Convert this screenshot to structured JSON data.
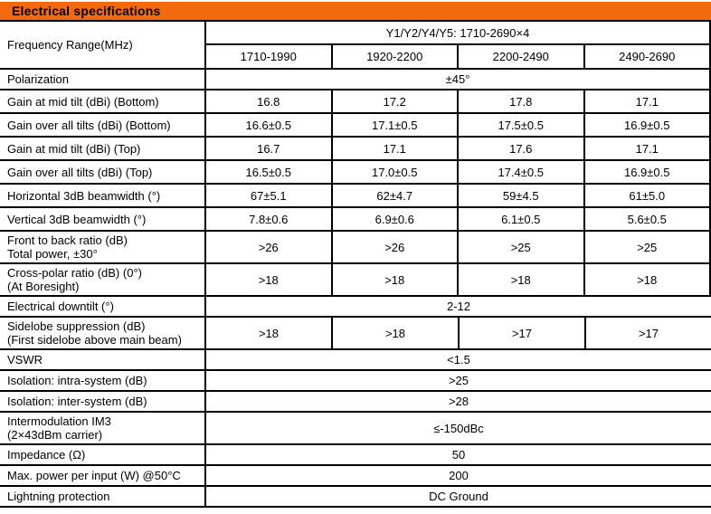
{
  "header": {
    "title": "Electrical specifications",
    "bg_color": "#F3690D",
    "text_color": "#000000"
  },
  "table": {
    "frequency": {
      "label": "Frequency Range(MHz)",
      "group_header": "Y1/Y2/Y4/Y5: 1710-2690×4",
      "columns": [
        "1710-1990",
        "1920-2200",
        "2200-2490",
        "2490-2690"
      ]
    },
    "rows": [
      {
        "label": "Polarization",
        "value": "±45°"
      },
      {
        "label": "Gain at mid tilt (dBi) (Bottom)",
        "values": [
          "16.8",
          "17.2",
          "17.8",
          "17.1"
        ]
      },
      {
        "label": "Gain over all tilts (dBi) (Bottom)",
        "values": [
          "16.6±0.5",
          "17.1±0.5",
          "17.5±0.5",
          "16.9±0.5"
        ]
      },
      {
        "label": "Gain at mid tilt (dBi) (Top)",
        "values": [
          "16.7",
          "17.1",
          "17.6",
          "17.1"
        ]
      },
      {
        "label": "Gain over all tilts (dBi) (Top)",
        "values": [
          "16.5±0.5",
          "17.0±0.5",
          "17.4±0.5",
          "16.9±0.5"
        ]
      },
      {
        "label": "Horizontal 3dB beamwidth (°)",
        "values": [
          "67±5.1",
          "62±4.7",
          "59±4.5",
          "61±5.0"
        ]
      },
      {
        "label": "Vertical 3dB beamwidth (°)",
        "values": [
          "7.8±0.6",
          "6.9±0.6",
          "6.1±0.5",
          "5.6±0.5"
        ]
      },
      {
        "label": "Front to back ratio (dB)\nTotal power, ±30°",
        "values": [
          ">26",
          ">26",
          ">25",
          ">25"
        ]
      },
      {
        "label": "Cross-polar ratio (dB) (0°)\n(At Boresight)",
        "values": [
          ">18",
          ">18",
          ">18",
          ">18"
        ]
      },
      {
        "label": "Electrical downtilt (°)",
        "value": "2-12"
      },
      {
        "label": "Sidelobe suppression (dB)\n(First sidelobe above main beam)",
        "values": [
          ">18",
          ">18",
          ">17",
          ">17"
        ]
      },
      {
        "label": "VSWR",
        "value": "<1.5"
      },
      {
        "label": "Isolation: intra-system (dB)",
        "value": ">25"
      },
      {
        "label": "Isolation: inter-system (dB)",
        "value": ">28"
      },
      {
        "label": "Intermodulation IM3\n(2×43dBm carrier)",
        "value": "≤-150dBc"
      },
      {
        "label": "Impedance (Ω)",
        "value": "50"
      },
      {
        "label": "Max. power per input (W) @50°C",
        "value": "200"
      },
      {
        "label": "Lightning protection",
        "value": "DC Ground"
      }
    ]
  }
}
